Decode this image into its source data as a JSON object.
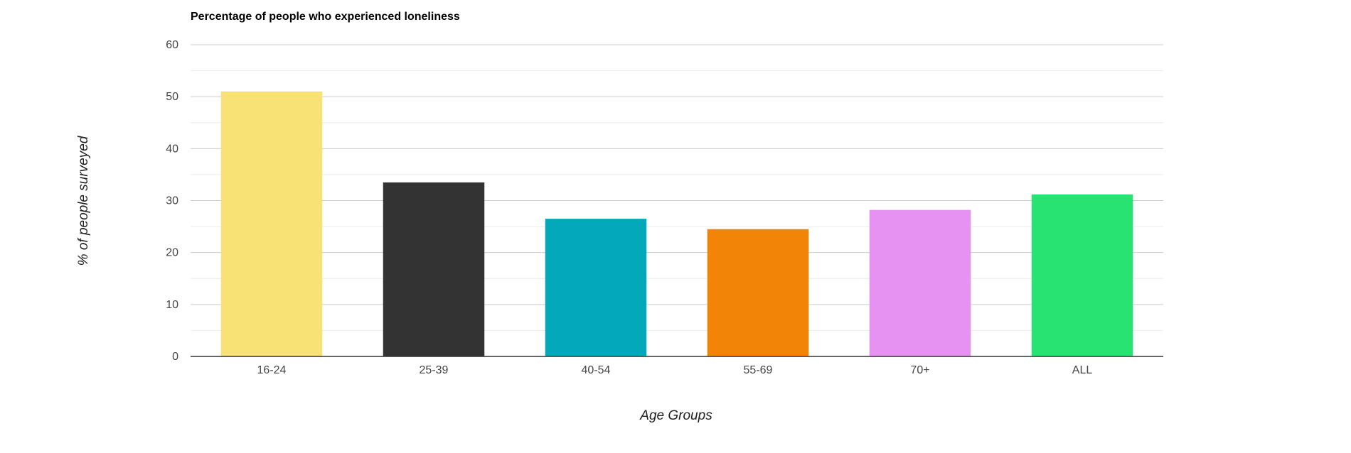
{
  "chart_data": {
    "type": "bar",
    "title": "Percentage of people who experienced loneliness",
    "xlabel": "Age Groups",
    "ylabel": "% of people surveyed",
    "categories": [
      "16-24",
      "25-39",
      "40-54",
      "55-69",
      "70+",
      "ALL"
    ],
    "values": [
      51,
      33.5,
      26.5,
      24.5,
      28.2,
      31.2
    ],
    "colors": [
      "#f9e275",
      "#333333",
      "#03a9ba",
      "#f28507",
      "#e692f2",
      "#28e372"
    ],
    "ylim": [
      0,
      60
    ],
    "yticks": [
      0,
      10,
      20,
      30,
      40,
      50,
      60
    ],
    "grid": true,
    "minor_grid": true,
    "legend": "none",
    "colors_style": {
      "grid_major": "#cccccc",
      "grid_minor": "#ebebeb",
      "axis": "#333333"
    }
  }
}
